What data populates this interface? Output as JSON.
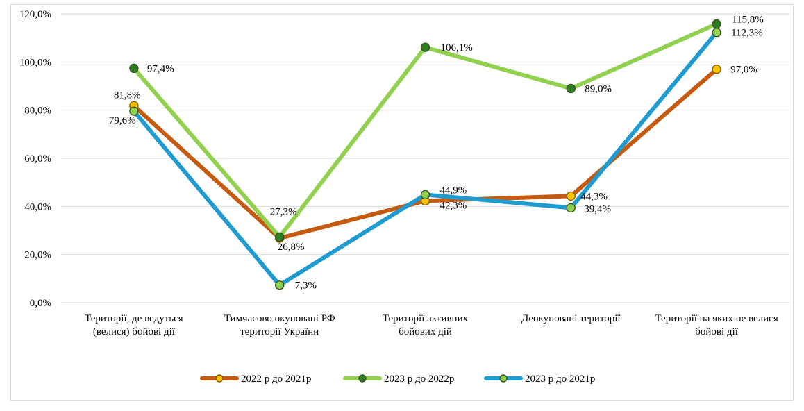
{
  "chart_data": {
    "type": "line",
    "title": "",
    "xlabel": "",
    "ylabel": "",
    "ylim": [
      0,
      120
    ],
    "yticks": [
      "0,0%",
      "20,0%",
      "40,0%",
      "60,0%",
      "80,0%",
      "100,0%",
      "120,0%"
    ],
    "ytick_values": [
      0,
      20,
      40,
      60,
      80,
      100,
      120
    ],
    "categories": [
      [
        "Території, де ведуться",
        "(велися) бойові дії"
      ],
      [
        "Тимчасово окуповані РФ",
        "території України"
      ],
      [
        "Території активних",
        "бойових дій"
      ],
      [
        "Деокуповані території"
      ],
      [
        "Території на яких не велися",
        "бойові дії"
      ]
    ],
    "grid": true,
    "legend_position": "bottom",
    "series": [
      {
        "name": "2022 р до 2021р",
        "values": [
          81.8,
          26.8,
          42.3,
          44.3,
          97.0
        ],
        "labels": [
          "81,8%",
          "",
          "42,3%",
          "44,3%",
          "97,0%"
        ],
        "line_color": "#c55a11",
        "marker_fill": "#ffc000",
        "marker_stroke": "#7f6000"
      },
      {
        "name": "2023 р до 2022р",
        "values": [
          97.4,
          27.3,
          106.1,
          89.0,
          115.8
        ],
        "labels": [
          "97,4%",
          "27,3%",
          "106,1%",
          "89,0%",
          "115,8%"
        ],
        "line_color": "#92d050",
        "marker_fill": "#2e7d20",
        "marker_stroke": "#375623"
      },
      {
        "name": "2023 р до 2021р",
        "values": [
          79.6,
          7.3,
          44.9,
          39.4,
          112.3
        ],
        "labels": [
          "79,6%",
          "7,3%",
          "44,9%",
          "39,4%",
          "112,3%"
        ],
        "line_color": "#1f9bcf",
        "marker_fill": "#92d050",
        "marker_stroke": "#375623"
      }
    ],
    "extra_labels": [
      {
        "series": 0,
        "point": 1,
        "text": "26,8%"
      }
    ]
  }
}
